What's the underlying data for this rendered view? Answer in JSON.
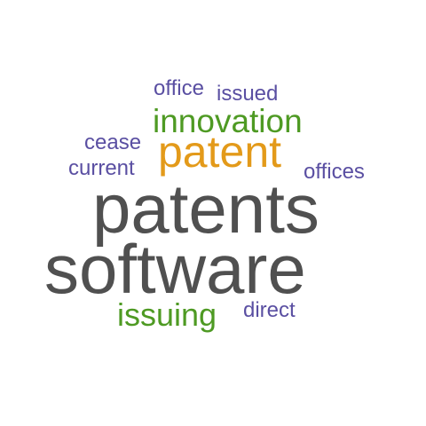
{
  "words": {
    "office": "office",
    "issued": "issued",
    "innovation": "innovation",
    "cease": "cease",
    "patent": "patent",
    "current": "current",
    "offices": "offices",
    "patents": "patents",
    "software": "software",
    "issuing": "issuing",
    "direct": "direct"
  },
  "colors": {
    "purple": "#5a4fa2",
    "green": "#4e9a23",
    "orange": "#e39a1a",
    "gray": "#505050"
  }
}
